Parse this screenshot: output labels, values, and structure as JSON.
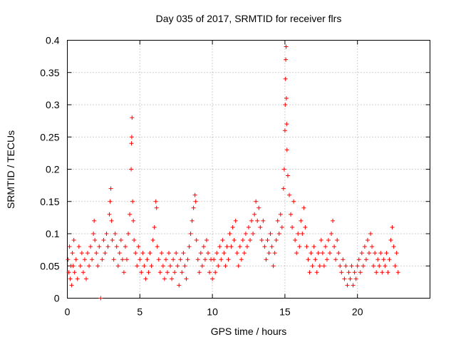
{
  "chart_data": {
    "type": "scatter",
    "title": "Day 035 of 2017, SRMTID for receiver flrs",
    "xlabel": "GPS time / hours",
    "ylabel": "SRMTID / TECUs",
    "xlim": [
      0,
      25
    ],
    "ylim": [
      0,
      0.4
    ],
    "x_ticks": [
      0,
      5,
      10,
      15,
      20
    ],
    "x_tick_labels": [
      "0",
      "5",
      "10",
      "15",
      "20"
    ],
    "y_ticks": [
      0,
      0.05,
      0.1,
      0.15,
      0.2,
      0.25,
      0.3,
      0.35,
      0.4
    ],
    "y_tick_labels": [
      "0",
      "0.05",
      "0.1",
      "0.15",
      "0.2",
      "0.25",
      "0.3",
      "0.35",
      "0.4"
    ],
    "grid": true,
    "marker": "+",
    "color": "#ff0000",
    "series": [
      {
        "name": "SRMTID",
        "points": [
          [
            0.05,
            0.06
          ],
          [
            0.1,
            0.04
          ],
          [
            0.15,
            0.08
          ],
          [
            0.2,
            0.03
          ],
          [
            0.25,
            0.05
          ],
          [
            0.3,
            0.02
          ],
          [
            0.35,
            0.07
          ],
          [
            0.4,
            0.05
          ],
          [
            0.45,
            0.09
          ],
          [
            0.5,
            0.04
          ],
          [
            0.6,
            0.06
          ],
          [
            0.7,
            0.03
          ],
          [
            0.8,
            0.08
          ],
          [
            0.9,
            0.05
          ],
          [
            1.0,
            0.07
          ],
          [
            1.1,
            0.04
          ],
          [
            1.2,
            0.06
          ],
          [
            1.3,
            0.03
          ],
          [
            1.4,
            0.07
          ],
          [
            1.5,
            0.05
          ],
          [
            1.6,
            0.08
          ],
          [
            1.7,
            0.06
          ],
          [
            1.8,
            0.1
          ],
          [
            1.85,
            0.12
          ],
          [
            1.9,
            0.09
          ],
          [
            2.0,
            0.07
          ],
          [
            2.1,
            0.05
          ],
          [
            2.2,
            0.08
          ],
          [
            2.3,
            0.0
          ],
          [
            2.4,
            0.06
          ],
          [
            2.5,
            0.09
          ],
          [
            2.6,
            0.07
          ],
          [
            2.7,
            0.1
          ],
          [
            2.8,
            0.08
          ],
          [
            2.9,
            0.13
          ],
          [
            2.95,
            0.15
          ],
          [
            3.0,
            0.17
          ],
          [
            3.05,
            0.12
          ],
          [
            3.1,
            0.09
          ],
          [
            3.2,
            0.06
          ],
          [
            3.3,
            0.1
          ],
          [
            3.4,
            0.08
          ],
          [
            3.5,
            0.05
          ],
          [
            3.6,
            0.07
          ],
          [
            3.7,
            0.09
          ],
          [
            3.8,
            0.06
          ],
          [
            3.9,
            0.04
          ],
          [
            4.0,
            0.08
          ],
          [
            4.1,
            0.06
          ],
          [
            4.2,
            0.1
          ],
          [
            4.3,
            0.13
          ],
          [
            4.4,
            0.2
          ],
          [
            4.42,
            0.24
          ],
          [
            4.44,
            0.25
          ],
          [
            4.46,
            0.28
          ],
          [
            4.5,
            0.15
          ],
          [
            4.55,
            0.12
          ],
          [
            4.6,
            0.09
          ],
          [
            4.7,
            0.07
          ],
          [
            4.8,
            0.05
          ],
          [
            4.9,
            0.08
          ],
          [
            5.0,
            0.06
          ],
          [
            5.1,
            0.04
          ],
          [
            5.2,
            0.07
          ],
          [
            5.3,
            0.05
          ],
          [
            5.4,
            0.03
          ],
          [
            5.5,
            0.06
          ],
          [
            5.6,
            0.04
          ],
          [
            5.7,
            0.07
          ],
          [
            5.8,
            0.05
          ],
          [
            5.9,
            0.09
          ],
          [
            6.0,
            0.11
          ],
          [
            6.1,
            0.15
          ],
          [
            6.15,
            0.14
          ],
          [
            6.2,
            0.08
          ],
          [
            6.3,
            0.06
          ],
          [
            6.4,
            0.04
          ],
          [
            6.5,
            0.07
          ],
          [
            6.6,
            0.05
          ],
          [
            6.7,
            0.03
          ],
          [
            6.8,
            0.06
          ],
          [
            6.9,
            0.04
          ],
          [
            7.0,
            0.07
          ],
          [
            7.1,
            0.05
          ],
          [
            7.2,
            0.03
          ],
          [
            7.3,
            0.06
          ],
          [
            7.4,
            0.04
          ],
          [
            7.5,
            0.07
          ],
          [
            7.6,
            0.05
          ],
          [
            7.7,
            0.02
          ],
          [
            7.8,
            0.06
          ],
          [
            7.9,
            0.04
          ],
          [
            8.0,
            0.07
          ],
          [
            8.1,
            0.05
          ],
          [
            8.2,
            0.03
          ],
          [
            8.3,
            0.06
          ],
          [
            8.4,
            0.08
          ],
          [
            8.5,
            0.1
          ],
          [
            8.6,
            0.12
          ],
          [
            8.7,
            0.14
          ],
          [
            8.8,
            0.16
          ],
          [
            8.85,
            0.15
          ],
          [
            8.9,
            0.09
          ],
          [
            9.0,
            0.06
          ],
          [
            9.1,
            0.04
          ],
          [
            9.2,
            0.07
          ],
          [
            9.3,
            0.05
          ],
          [
            9.4,
            0.08
          ],
          [
            9.5,
            0.06
          ],
          [
            9.6,
            0.09
          ],
          [
            9.7,
            0.07
          ],
          [
            9.8,
            0.04
          ],
          [
            9.9,
            0.06
          ],
          [
            10.0,
            0.03
          ],
          [
            10.1,
            0.06
          ],
          [
            10.2,
            0.04
          ],
          [
            10.3,
            0.07
          ],
          [
            10.4,
            0.05
          ],
          [
            10.5,
            0.08
          ],
          [
            10.6,
            0.06
          ],
          [
            10.7,
            0.09
          ],
          [
            10.8,
            0.07
          ],
          [
            10.9,
            0.05
          ],
          [
            11.0,
            0.08
          ],
          [
            11.1,
            0.06
          ],
          [
            11.2,
            0.1
          ],
          [
            11.3,
            0.08
          ],
          [
            11.4,
            0.11
          ],
          [
            11.5,
            0.09
          ],
          [
            11.6,
            0.12
          ],
          [
            11.7,
            0.07
          ],
          [
            11.8,
            0.05
          ],
          [
            11.9,
            0.08
          ],
          [
            12.0,
            0.06
          ],
          [
            12.1,
            0.09
          ],
          [
            12.2,
            0.07
          ],
          [
            12.3,
            0.1
          ],
          [
            12.4,
            0.08
          ],
          [
            12.5,
            0.11
          ],
          [
            12.6,
            0.09
          ],
          [
            12.7,
            0.12
          ],
          [
            12.8,
            0.1
          ],
          [
            12.9,
            0.13
          ],
          [
            13.0,
            0.15
          ],
          [
            13.1,
            0.12
          ],
          [
            13.2,
            0.14
          ],
          [
            13.3,
            0.11
          ],
          [
            13.4,
            0.09
          ],
          [
            13.5,
            0.12
          ],
          [
            13.6,
            0.08
          ],
          [
            13.7,
            0.06
          ],
          [
            13.8,
            0.09
          ],
          [
            13.9,
            0.07
          ],
          [
            14.0,
            0.1
          ],
          [
            14.1,
            0.08
          ],
          [
            14.2,
            0.05
          ],
          [
            14.3,
            0.07
          ],
          [
            14.4,
            0.09
          ],
          [
            14.5,
            0.12
          ],
          [
            14.6,
            0.1
          ],
          [
            14.7,
            0.13
          ],
          [
            14.8,
            0.11
          ],
          [
            14.9,
            0.17
          ],
          [
            14.95,
            0.2
          ],
          [
            15.0,
            0.26
          ],
          [
            15.02,
            0.3
          ],
          [
            15.04,
            0.34
          ],
          [
            15.06,
            0.37
          ],
          [
            15.08,
            0.39
          ],
          [
            15.1,
            0.31
          ],
          [
            15.12,
            0.27
          ],
          [
            15.14,
            0.23
          ],
          [
            15.2,
            0.19
          ],
          [
            15.3,
            0.16
          ],
          [
            15.4,
            0.13
          ],
          [
            15.5,
            0.11
          ],
          [
            15.6,
            0.15
          ],
          [
            15.7,
            0.09
          ],
          [
            15.8,
            0.07
          ],
          [
            15.9,
            0.1
          ],
          [
            16.0,
            0.08
          ],
          [
            16.1,
            0.12
          ],
          [
            16.2,
            0.1
          ],
          [
            16.3,
            0.14
          ],
          [
            16.4,
            0.11
          ],
          [
            16.5,
            0.08
          ],
          [
            16.6,
            0.06
          ],
          [
            16.7,
            0.04
          ],
          [
            16.8,
            0.07
          ],
          [
            16.9,
            0.05
          ],
          [
            17.0,
            0.08
          ],
          [
            17.1,
            0.06
          ],
          [
            17.2,
            0.04
          ],
          [
            17.3,
            0.07
          ],
          [
            17.4,
            0.05
          ],
          [
            17.5,
            0.09
          ],
          [
            17.6,
            0.07
          ],
          [
            17.7,
            0.05
          ],
          [
            17.8,
            0.08
          ],
          [
            17.9,
            0.06
          ],
          [
            18.0,
            0.09
          ],
          [
            18.1,
            0.07
          ],
          [
            18.2,
            0.1
          ],
          [
            18.3,
            0.12
          ],
          [
            18.4,
            0.08
          ],
          [
            18.5,
            0.06
          ],
          [
            18.6,
            0.09
          ],
          [
            18.7,
            0.07
          ],
          [
            18.8,
            0.05
          ],
          [
            18.9,
            0.04
          ],
          [
            19.0,
            0.06
          ],
          [
            19.1,
            0.03
          ],
          [
            19.2,
            0.05
          ],
          [
            19.3,
            0.02
          ],
          [
            19.4,
            0.04
          ],
          [
            19.5,
            0.03
          ],
          [
            19.6,
            0.05
          ],
          [
            19.7,
            0.02
          ],
          [
            19.8,
            0.04
          ],
          [
            19.9,
            0.03
          ],
          [
            20.0,
            0.05
          ],
          [
            20.1,
            0.06
          ],
          [
            20.2,
            0.04
          ],
          [
            20.3,
            0.07
          ],
          [
            20.4,
            0.05
          ],
          [
            20.5,
            0.08
          ],
          [
            20.6,
            0.06
          ],
          [
            20.7,
            0.09
          ],
          [
            20.8,
            0.07
          ],
          [
            20.9,
            0.1
          ],
          [
            21.0,
            0.08
          ],
          [
            21.1,
            0.05
          ],
          [
            21.2,
            0.07
          ],
          [
            21.3,
            0.04
          ],
          [
            21.4,
            0.06
          ],
          [
            21.5,
            0.05
          ],
          [
            21.6,
            0.07
          ],
          [
            21.7,
            0.04
          ],
          [
            21.8,
            0.06
          ],
          [
            21.9,
            0.05
          ],
          [
            22.0,
            0.07
          ],
          [
            22.1,
            0.04
          ],
          [
            22.2,
            0.06
          ],
          [
            22.3,
            0.09
          ],
          [
            22.4,
            0.11
          ],
          [
            22.5,
            0.08
          ],
          [
            22.6,
            0.05
          ],
          [
            22.7,
            0.07
          ],
          [
            22.8,
            0.04
          ]
        ]
      }
    ]
  }
}
